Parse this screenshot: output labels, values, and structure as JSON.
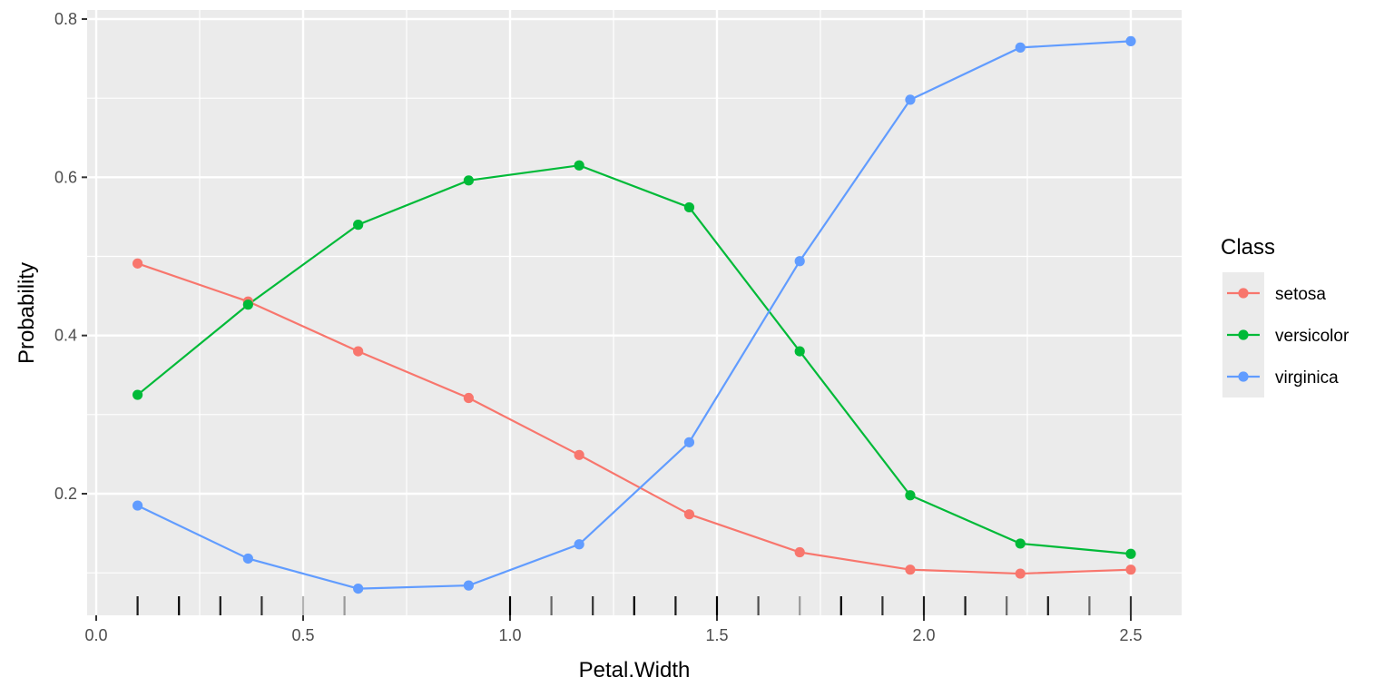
{
  "chart_data": {
    "type": "line",
    "xlabel": "Petal.Width",
    "ylabel": "Probability",
    "xlim": [
      0.0,
      2.5
    ],
    "ylim": [
      0.05,
      0.8
    ],
    "x_ticks": [
      "0.0",
      "0.5",
      "1.0",
      "1.5",
      "2.0",
      "2.5"
    ],
    "y_ticks": [
      "0.2",
      "0.4",
      "0.6",
      "0.8"
    ],
    "grid": true,
    "legend_title": "Class",
    "legend_position": "right",
    "x": [
      0.1,
      0.367,
      0.633,
      0.9,
      1.167,
      1.433,
      1.7,
      1.967,
      2.233,
      2.5
    ],
    "series": [
      {
        "name": "setosa",
        "color": "#F8766D",
        "values": [
          0.491,
          0.443,
          0.38,
          0.321,
          0.249,
          0.174,
          0.126,
          0.104,
          0.099,
          0.104
        ]
      },
      {
        "name": "versicolor",
        "color": "#00BA38",
        "values": [
          0.325,
          0.439,
          0.54,
          0.596,
          0.615,
          0.562,
          0.38,
          0.198,
          0.137,
          0.124
        ]
      },
      {
        "name": "virginica",
        "color": "#619CFF",
        "values": [
          0.185,
          0.118,
          0.08,
          0.084,
          0.136,
          0.265,
          0.494,
          0.698,
          0.764,
          0.772
        ]
      }
    ],
    "rug": {
      "x": [
        0.1,
        0.2,
        0.3,
        0.4,
        0.5,
        0.6,
        1.0,
        1.1,
        1.2,
        1.3,
        1.4,
        1.5,
        1.6,
        1.7,
        1.8,
        1.9,
        2.0,
        2.1,
        2.2,
        2.3,
        2.4,
        2.5
      ],
      "shade": [
        "#1a1a1a",
        "#000000",
        "#1a1a1a",
        "#333333",
        "#b3b3b3",
        "#999999",
        "#000000",
        "#666666",
        "#333333",
        "#000000",
        "#1a1a1a",
        "#000000",
        "#4d4d4d",
        "#999999",
        "#000000",
        "#333333",
        "#1a1a1a",
        "#1a1a1a",
        "#666666",
        "#1a1a1a",
        "#666666",
        "#333333"
      ]
    }
  }
}
